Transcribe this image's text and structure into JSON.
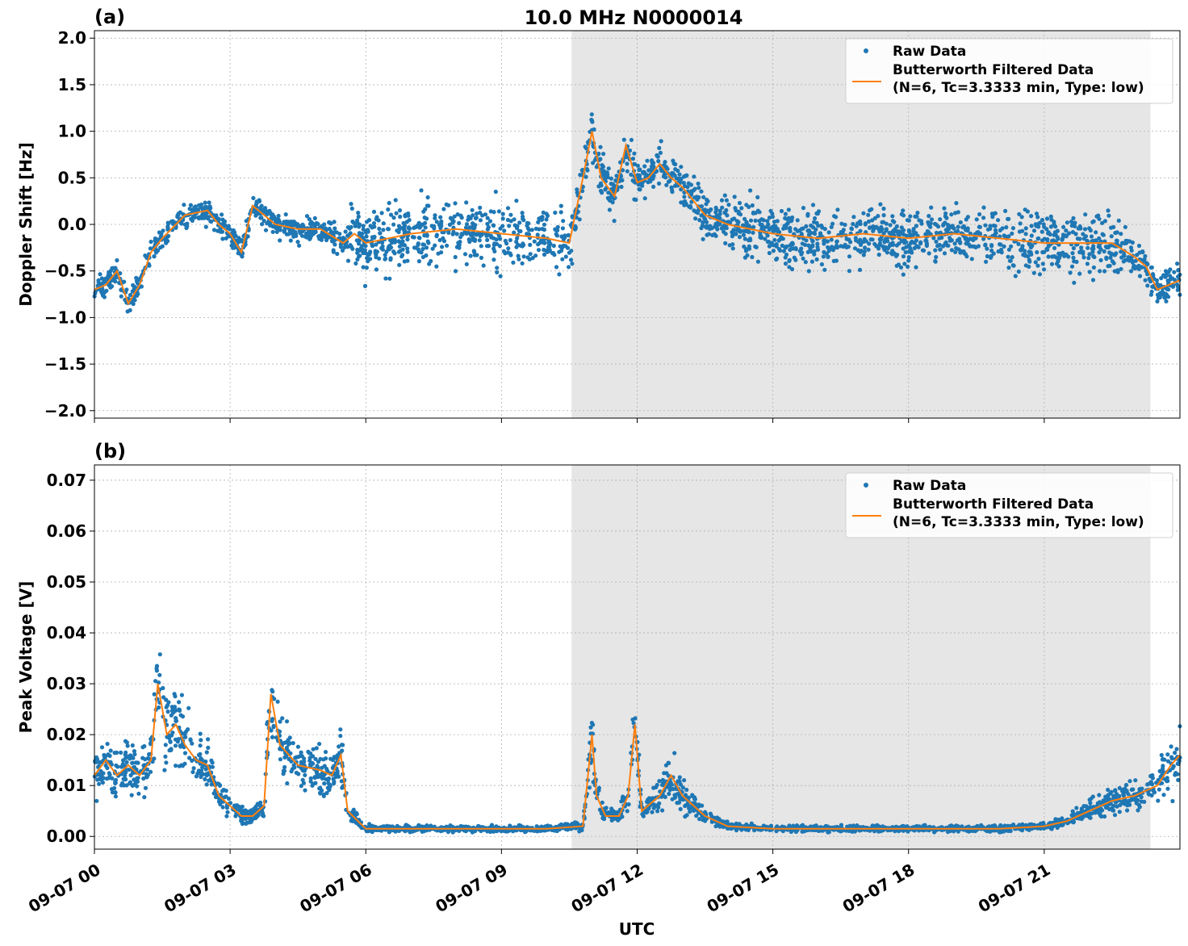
{
  "figure": {
    "title": "10.0 MHz N0000014",
    "xlabel": "UTC",
    "colors": {
      "raw": "#1f77b4",
      "filtered": "#ff7f0e",
      "shade": "#e6e6e6",
      "grid": "#b0b0b0"
    }
  },
  "chart_data": [
    {
      "type": "scatter",
      "panel": "(a)",
      "title": "10.0 MHz N0000014",
      "xlabel": "",
      "ylabel": "Doppler Shift [Hz]",
      "xlim_hours": [
        0,
        24
      ],
      "ylim": [
        -2.08,
        2.08
      ],
      "yticks": [
        -2.0,
        -1.5,
        -1.0,
        -0.5,
        0.0,
        0.5,
        1.0,
        1.5,
        2.0
      ],
      "ytick_labels": [
        "−2.0",
        "−1.5",
        "−1.0",
        "−0.5",
        "0.0",
        "0.5",
        "1.0",
        "1.5",
        "2.0"
      ],
      "grid": true,
      "legend_location": "upper-right",
      "shaded_interval_hours": [
        10.55,
        23.35
      ],
      "series": [
        {
          "name": "Raw Data",
          "kind": "scatter",
          "color": "#1f77b4"
        },
        {
          "name": "Butterworth Filtered Data",
          "kind": "line",
          "color": "#ff7f0e",
          "x_hours": [
            0,
            0.25,
            0.5,
            0.75,
            1.0,
            1.25,
            1.5,
            2.0,
            2.5,
            2.75,
            3.0,
            3.25,
            3.5,
            3.75,
            4.0,
            4.5,
            5.0,
            5.5,
            5.75,
            6.0,
            6.5,
            7.0,
            8.0,
            9.0,
            10.0,
            10.5,
            10.8,
            11.0,
            11.2,
            11.5,
            11.75,
            12.0,
            12.25,
            12.5,
            12.75,
            13.0,
            13.5,
            14.0,
            15.0,
            16.0,
            17.0,
            18.0,
            19.0,
            20.0,
            21.0,
            22.0,
            22.5,
            23.0,
            23.25,
            23.5,
            24.0
          ],
          "values": [
            -0.7,
            -0.65,
            -0.5,
            -0.85,
            -0.65,
            -0.3,
            -0.15,
            0.1,
            0.15,
            0.0,
            -0.1,
            -0.3,
            0.2,
            0.1,
            0.0,
            -0.05,
            -0.05,
            -0.2,
            -0.1,
            -0.2,
            -0.15,
            -0.1,
            -0.05,
            -0.1,
            -0.15,
            -0.2,
            0.5,
            1.0,
            0.5,
            0.3,
            0.85,
            0.45,
            0.5,
            0.65,
            0.5,
            0.4,
            0.1,
            0.0,
            -0.1,
            -0.15,
            -0.1,
            -0.15,
            -0.1,
            -0.15,
            -0.2,
            -0.2,
            -0.2,
            -0.35,
            -0.45,
            -0.7,
            -0.6
          ]
        }
      ],
      "legend_labels": [
        "Raw Data",
        "Butterworth Filtered Data",
        "(N=6, Tc=3.3333 min, Type: low)"
      ]
    },
    {
      "type": "scatter",
      "panel": "(b)",
      "xlabel": "UTC",
      "ylabel": "Peak Voltage [V]",
      "xlim_hours": [
        0,
        24
      ],
      "ylim": [
        -0.0025,
        0.073
      ],
      "yticks": [
        0.0,
        0.01,
        0.02,
        0.03,
        0.04,
        0.05,
        0.06,
        0.07
      ],
      "ytick_labels": [
        "0.00",
        "0.01",
        "0.02",
        "0.03",
        "0.04",
        "0.05",
        "0.06",
        "0.07"
      ],
      "grid": true,
      "legend_location": "upper-right",
      "shaded_interval_hours": [
        10.55,
        23.35
      ],
      "series": [
        {
          "name": "Raw Data",
          "kind": "scatter",
          "color": "#1f77b4"
        },
        {
          "name": "Butterworth Filtered Data",
          "kind": "line",
          "color": "#ff7f0e",
          "x_hours": [
            0,
            0.25,
            0.5,
            0.75,
            1.0,
            1.25,
            1.4,
            1.6,
            1.8,
            2.0,
            2.25,
            2.5,
            2.75,
            3.0,
            3.25,
            3.5,
            3.75,
            3.9,
            4.1,
            4.5,
            5.0,
            5.25,
            5.45,
            5.6,
            6.0,
            7.0,
            8.0,
            9.0,
            10.0,
            10.8,
            11.0,
            11.1,
            11.3,
            11.6,
            11.8,
            11.95,
            12.1,
            12.5,
            12.75,
            13.0,
            13.5,
            14.0,
            15.0,
            16.0,
            17.0,
            18.0,
            19.0,
            20.0,
            21.0,
            21.5,
            22.0,
            22.5,
            23.0,
            23.5,
            23.8,
            24.0
          ],
          "values": [
            0.012,
            0.015,
            0.012,
            0.014,
            0.012,
            0.015,
            0.03,
            0.02,
            0.022,
            0.018,
            0.015,
            0.014,
            0.008,
            0.006,
            0.004,
            0.004,
            0.006,
            0.028,
            0.018,
            0.014,
            0.013,
            0.012,
            0.016,
            0.005,
            0.0015,
            0.0015,
            0.0015,
            0.0015,
            0.0015,
            0.002,
            0.02,
            0.008,
            0.004,
            0.004,
            0.008,
            0.022,
            0.005,
            0.008,
            0.012,
            0.008,
            0.004,
            0.002,
            0.0015,
            0.0015,
            0.0015,
            0.0015,
            0.0015,
            0.0015,
            0.002,
            0.003,
            0.005,
            0.007,
            0.008,
            0.01,
            0.014,
            0.016
          ]
        }
      ],
      "legend_labels": [
        "Raw Data",
        "Butterworth Filtered Data",
        "(N=6, Tc=3.3333 min, Type: low)"
      ]
    }
  ],
  "x_axis": {
    "ticks_hours": [
      0,
      3,
      6,
      9,
      12,
      15,
      18,
      21
    ],
    "tick_labels": [
      "09-07 00",
      "09-07 03",
      "09-07 06",
      "09-07 09",
      "09-07 12",
      "09-07 15",
      "09-07 18",
      "09-07 21"
    ]
  }
}
